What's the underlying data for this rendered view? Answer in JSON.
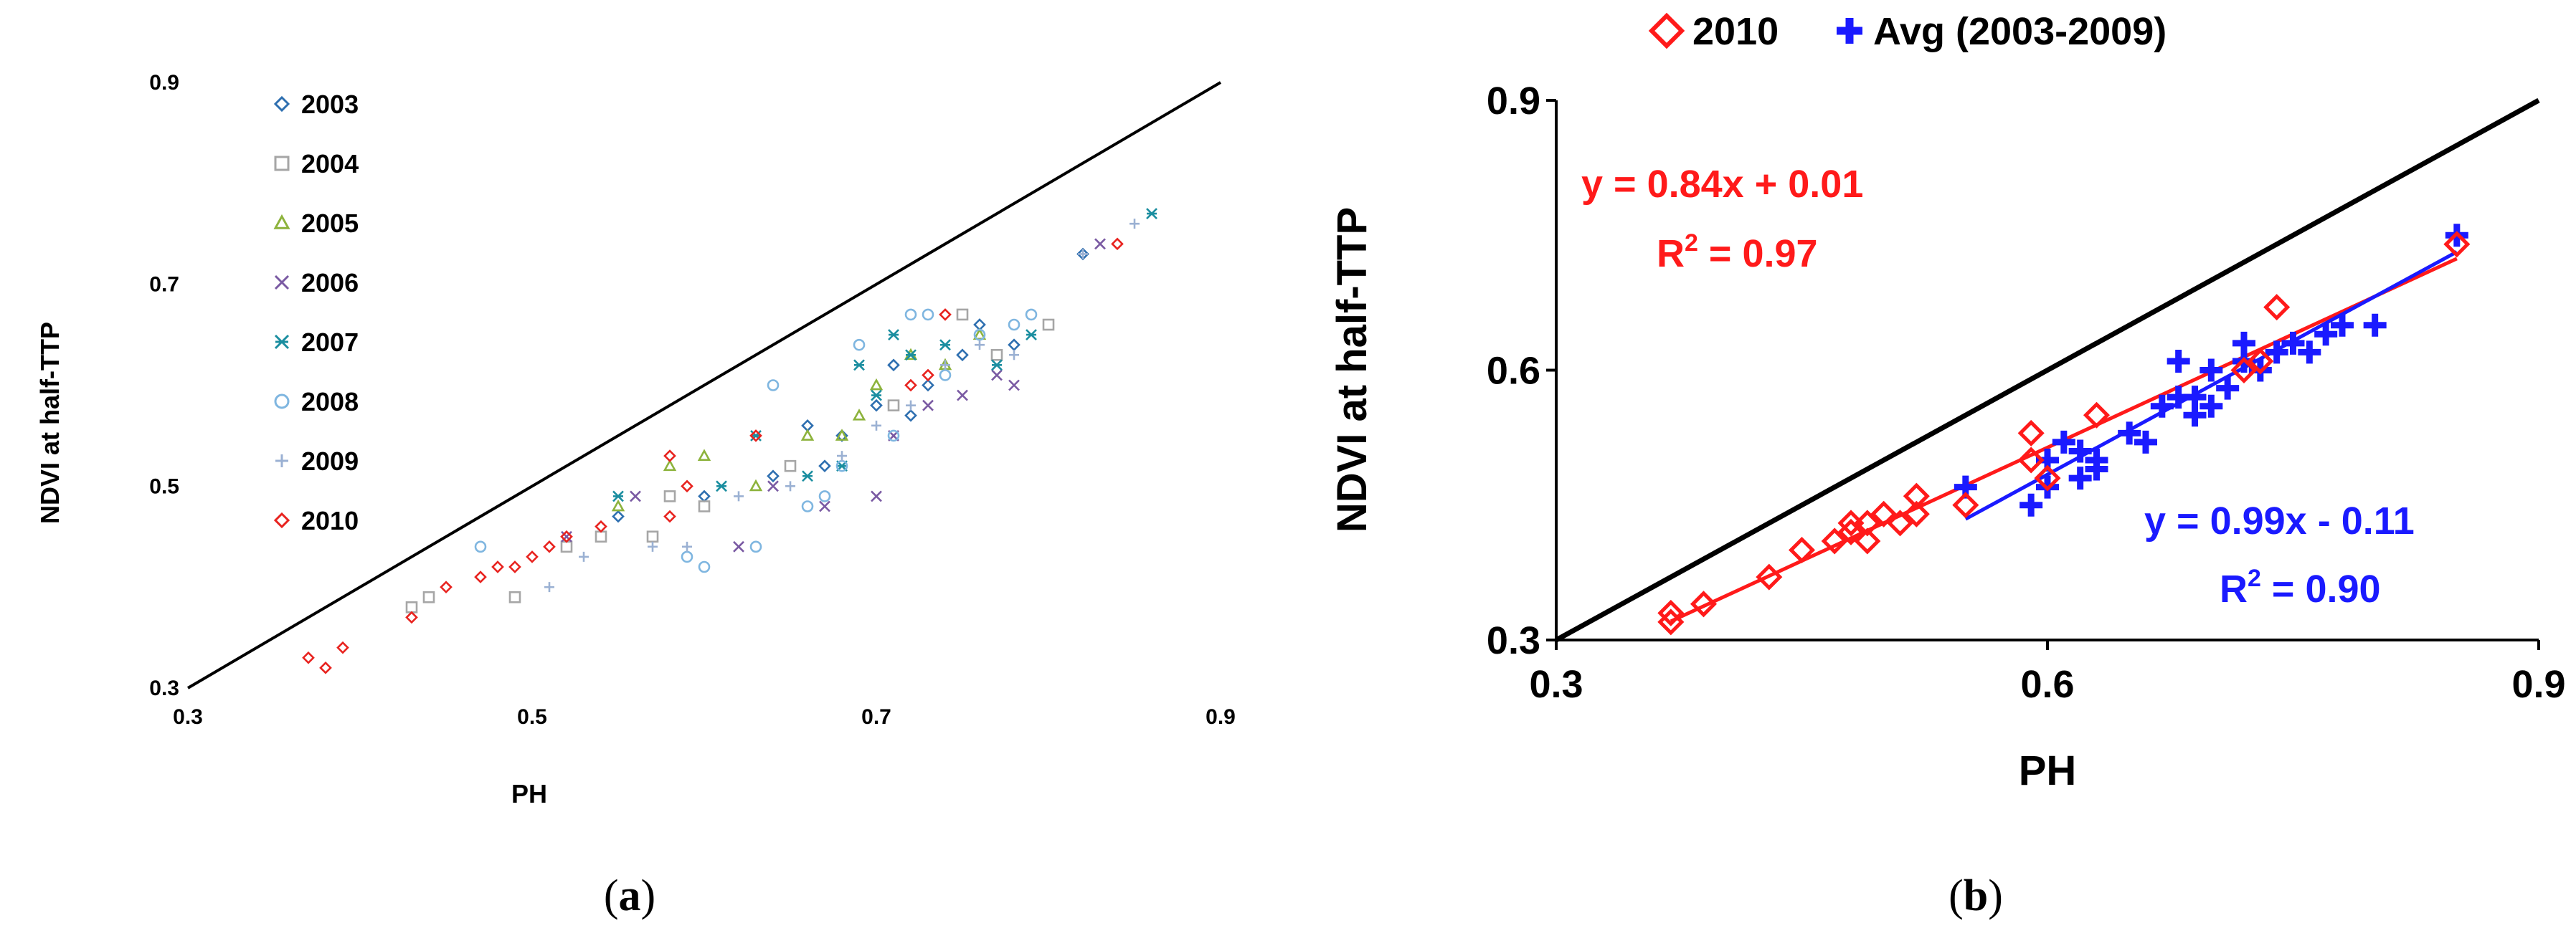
{
  "chart_data": [
    {
      "id": "a",
      "type": "scatter",
      "caption_open": "(",
      "caption_letter": "a",
      "caption_close": ")",
      "xlabel": "PH",
      "ylabel": "NDVI at half-TTP",
      "xlim": [
        0.3,
        0.9
      ],
      "ylim": [
        0.3,
        0.9
      ],
      "x_ticks": [
        "0.3",
        "0.5",
        "0.7",
        "0.9"
      ],
      "y_ticks": [
        "0.3",
        "0.5",
        "0.7",
        "0.9"
      ],
      "reference_line": "1:1",
      "legend_position": "top-left",
      "series": [
        {
          "name": "2003",
          "marker": "diamond",
          "color": "#2e6fb0",
          "points": [
            [
              0.55,
              0.47
            ],
            [
              0.6,
              0.49
            ],
            [
              0.64,
              0.51
            ],
            [
              0.66,
              0.56
            ],
            [
              0.68,
              0.55
            ],
            [
              0.7,
              0.58
            ],
            [
              0.71,
              0.62
            ],
            [
              0.73,
              0.6
            ],
            [
              0.75,
              0.63
            ],
            [
              0.76,
              0.66
            ],
            [
              0.78,
              0.64
            ],
            [
              0.82,
              0.73
            ],
            [
              0.67,
              0.52
            ],
            [
              0.72,
              0.57
            ]
          ]
        },
        {
          "name": "2004",
          "marker": "square",
          "color": "#a6a6a6",
          "points": [
            [
              0.43,
              0.38
            ],
            [
              0.44,
              0.39
            ],
            [
              0.49,
              0.39
            ],
            [
              0.52,
              0.44
            ],
            [
              0.54,
              0.45
            ],
            [
              0.57,
              0.45
            ],
            [
              0.58,
              0.49
            ],
            [
              0.6,
              0.48
            ],
            [
              0.65,
              0.52
            ],
            [
              0.71,
              0.58
            ],
            [
              0.75,
              0.67
            ],
            [
              0.77,
              0.63
            ],
            [
              0.8,
              0.66
            ]
          ]
        },
        {
          "name": "2005",
          "marker": "triangle",
          "color": "#8db33c",
          "points": [
            [
              0.55,
              0.48
            ],
            [
              0.58,
              0.52
            ],
            [
              0.6,
              0.53
            ],
            [
              0.63,
              0.5
            ],
            [
              0.66,
              0.55
            ],
            [
              0.68,
              0.55
            ],
            [
              0.69,
              0.57
            ],
            [
              0.7,
              0.6
            ],
            [
              0.72,
              0.63
            ],
            [
              0.74,
              0.62
            ],
            [
              0.76,
              0.65
            ]
          ]
        },
        {
          "name": "2006",
          "marker": "x",
          "color": "#7a5aa3",
          "points": [
            [
              0.52,
              0.45
            ],
            [
              0.56,
              0.49
            ],
            [
              0.62,
              0.44
            ],
            [
              0.64,
              0.5
            ],
            [
              0.67,
              0.48
            ],
            [
              0.7,
              0.49
            ],
            [
              0.71,
              0.55
            ],
            [
              0.73,
              0.58
            ],
            [
              0.75,
              0.59
            ],
            [
              0.77,
              0.61
            ],
            [
              0.78,
              0.6
            ],
            [
              0.83,
              0.74
            ]
          ]
        },
        {
          "name": "2007",
          "marker": "star",
          "color": "#1b8ea0",
          "points": [
            [
              0.55,
              0.49
            ],
            [
              0.61,
              0.5
            ],
            [
              0.63,
              0.55
            ],
            [
              0.66,
              0.51
            ],
            [
              0.68,
              0.52
            ],
            [
              0.69,
              0.62
            ],
            [
              0.7,
              0.59
            ],
            [
              0.71,
              0.65
            ],
            [
              0.72,
              0.63
            ],
            [
              0.74,
              0.64
            ],
            [
              0.77,
              0.62
            ],
            [
              0.79,
              0.65
            ],
            [
              0.86,
              0.77
            ]
          ]
        },
        {
          "name": "2008",
          "marker": "circle",
          "color": "#7fb6e0",
          "points": [
            [
              0.47,
              0.44
            ],
            [
              0.59,
              0.43
            ],
            [
              0.6,
              0.42
            ],
            [
              0.63,
              0.44
            ],
            [
              0.64,
              0.6
            ],
            [
              0.66,
              0.48
            ],
            [
              0.67,
              0.49
            ],
            [
              0.68,
              0.52
            ],
            [
              0.69,
              0.64
            ],
            [
              0.71,
              0.55
            ],
            [
              0.72,
              0.67
            ],
            [
              0.73,
              0.67
            ],
            [
              0.74,
              0.61
            ],
            [
              0.76,
              0.65
            ],
            [
              0.78,
              0.66
            ],
            [
              0.79,
              0.67
            ]
          ]
        },
        {
          "name": "2009",
          "marker": "plus",
          "color": "#9bb1d3",
          "points": [
            [
              0.51,
              0.4
            ],
            [
              0.53,
              0.43
            ],
            [
              0.57,
              0.44
            ],
            [
              0.59,
              0.44
            ],
            [
              0.62,
              0.49
            ],
            [
              0.65,
              0.5
            ],
            [
              0.68,
              0.53
            ],
            [
              0.7,
              0.56
            ],
            [
              0.72,
              0.58
            ],
            [
              0.74,
              0.62
            ],
            [
              0.76,
              0.64
            ],
            [
              0.78,
              0.63
            ],
            [
              0.82,
              0.73
            ],
            [
              0.85,
              0.76
            ]
          ]
        },
        {
          "name": "2010",
          "marker": "diamond",
          "color": "#e8231f",
          "points": [
            [
              0.37,
              0.33
            ],
            [
              0.38,
              0.32
            ],
            [
              0.39,
              0.34
            ],
            [
              0.43,
              0.37
            ],
            [
              0.45,
              0.4
            ],
            [
              0.47,
              0.41
            ],
            [
              0.48,
              0.42
            ],
            [
              0.49,
              0.42
            ],
            [
              0.5,
              0.43
            ],
            [
              0.51,
              0.44
            ],
            [
              0.52,
              0.45
            ],
            [
              0.54,
              0.46
            ],
            [
              0.58,
              0.47
            ],
            [
              0.58,
              0.53
            ],
            [
              0.59,
              0.5
            ],
            [
              0.63,
              0.55
            ],
            [
              0.72,
              0.6
            ],
            [
              0.73,
              0.61
            ],
            [
              0.74,
              0.67
            ],
            [
              0.84,
              0.74
            ]
          ]
        }
      ]
    },
    {
      "id": "b",
      "type": "scatter",
      "caption_open": "(",
      "caption_letter": "b",
      "caption_close": ")",
      "xlabel": "PH",
      "ylabel": "NDVI at half-TTP",
      "xlim": [
        0.3,
        0.9
      ],
      "ylim": [
        0.3,
        0.9
      ],
      "x_ticks": [
        "0.3",
        "0.6",
        "0.9"
      ],
      "y_ticks": [
        "0.3",
        "0.6",
        "0.9"
      ],
      "reference_line": "1:1",
      "legend_position": "top",
      "series": [
        {
          "name": "2010",
          "marker": "diamond",
          "color": "#ff1a1a",
          "fit_equation": "y = 0.84x + 0.01",
          "r2_label": "R",
          "r2_exp": "2",
          "r2_value": " = 0.97",
          "fit": {
            "slope": 0.84,
            "intercept": 0.01,
            "x_range": [
              0.37,
              0.85
            ]
          },
          "points": [
            [
              0.37,
              0.32
            ],
            [
              0.37,
              0.33
            ],
            [
              0.39,
              0.34
            ],
            [
              0.43,
              0.37
            ],
            [
              0.45,
              0.4
            ],
            [
              0.47,
              0.41
            ],
            [
              0.48,
              0.42
            ],
            [
              0.48,
              0.43
            ],
            [
              0.49,
              0.41
            ],
            [
              0.49,
              0.43
            ],
            [
              0.5,
              0.44
            ],
            [
              0.51,
              0.43
            ],
            [
              0.52,
              0.44
            ],
            [
              0.52,
              0.46
            ],
            [
              0.55,
              0.45
            ],
            [
              0.59,
              0.5
            ],
            [
              0.59,
              0.53
            ],
            [
              0.6,
              0.48
            ],
            [
              0.63,
              0.55
            ],
            [
              0.72,
              0.6
            ],
            [
              0.73,
              0.61
            ],
            [
              0.74,
              0.67
            ],
            [
              0.85,
              0.74
            ]
          ]
        },
        {
          "name": "Avg (2003-2009)",
          "marker": "plus",
          "color": "#1a1aff",
          "fit_equation": "y = 0.99x - 0.11",
          "r2_label": "R",
          "r2_exp": "2",
          "r2_value": " = 0.90",
          "fit": {
            "slope": 0.99,
            "intercept": -0.11,
            "x_range": [
              0.55,
              0.85
            ]
          },
          "points": [
            [
              0.55,
              0.47
            ],
            [
              0.59,
              0.45
            ],
            [
              0.6,
              0.47
            ],
            [
              0.6,
              0.5
            ],
            [
              0.61,
              0.52
            ],
            [
              0.62,
              0.48
            ],
            [
              0.62,
              0.51
            ],
            [
              0.63,
              0.49
            ],
            [
              0.63,
              0.5
            ],
            [
              0.65,
              0.53
            ],
            [
              0.66,
              0.52
            ],
            [
              0.67,
              0.56
            ],
            [
              0.68,
              0.57
            ],
            [
              0.68,
              0.61
            ],
            [
              0.69,
              0.55
            ],
            [
              0.69,
              0.57
            ],
            [
              0.7,
              0.56
            ],
            [
              0.7,
              0.6
            ],
            [
              0.71,
              0.58
            ],
            [
              0.72,
              0.61
            ],
            [
              0.72,
              0.63
            ],
            [
              0.73,
              0.6
            ],
            [
              0.74,
              0.62
            ],
            [
              0.75,
              0.63
            ],
            [
              0.76,
              0.62
            ],
            [
              0.77,
              0.64
            ],
            [
              0.78,
              0.65
            ],
            [
              0.8,
              0.65
            ],
            [
              0.85,
              0.75
            ]
          ]
        }
      ]
    }
  ]
}
